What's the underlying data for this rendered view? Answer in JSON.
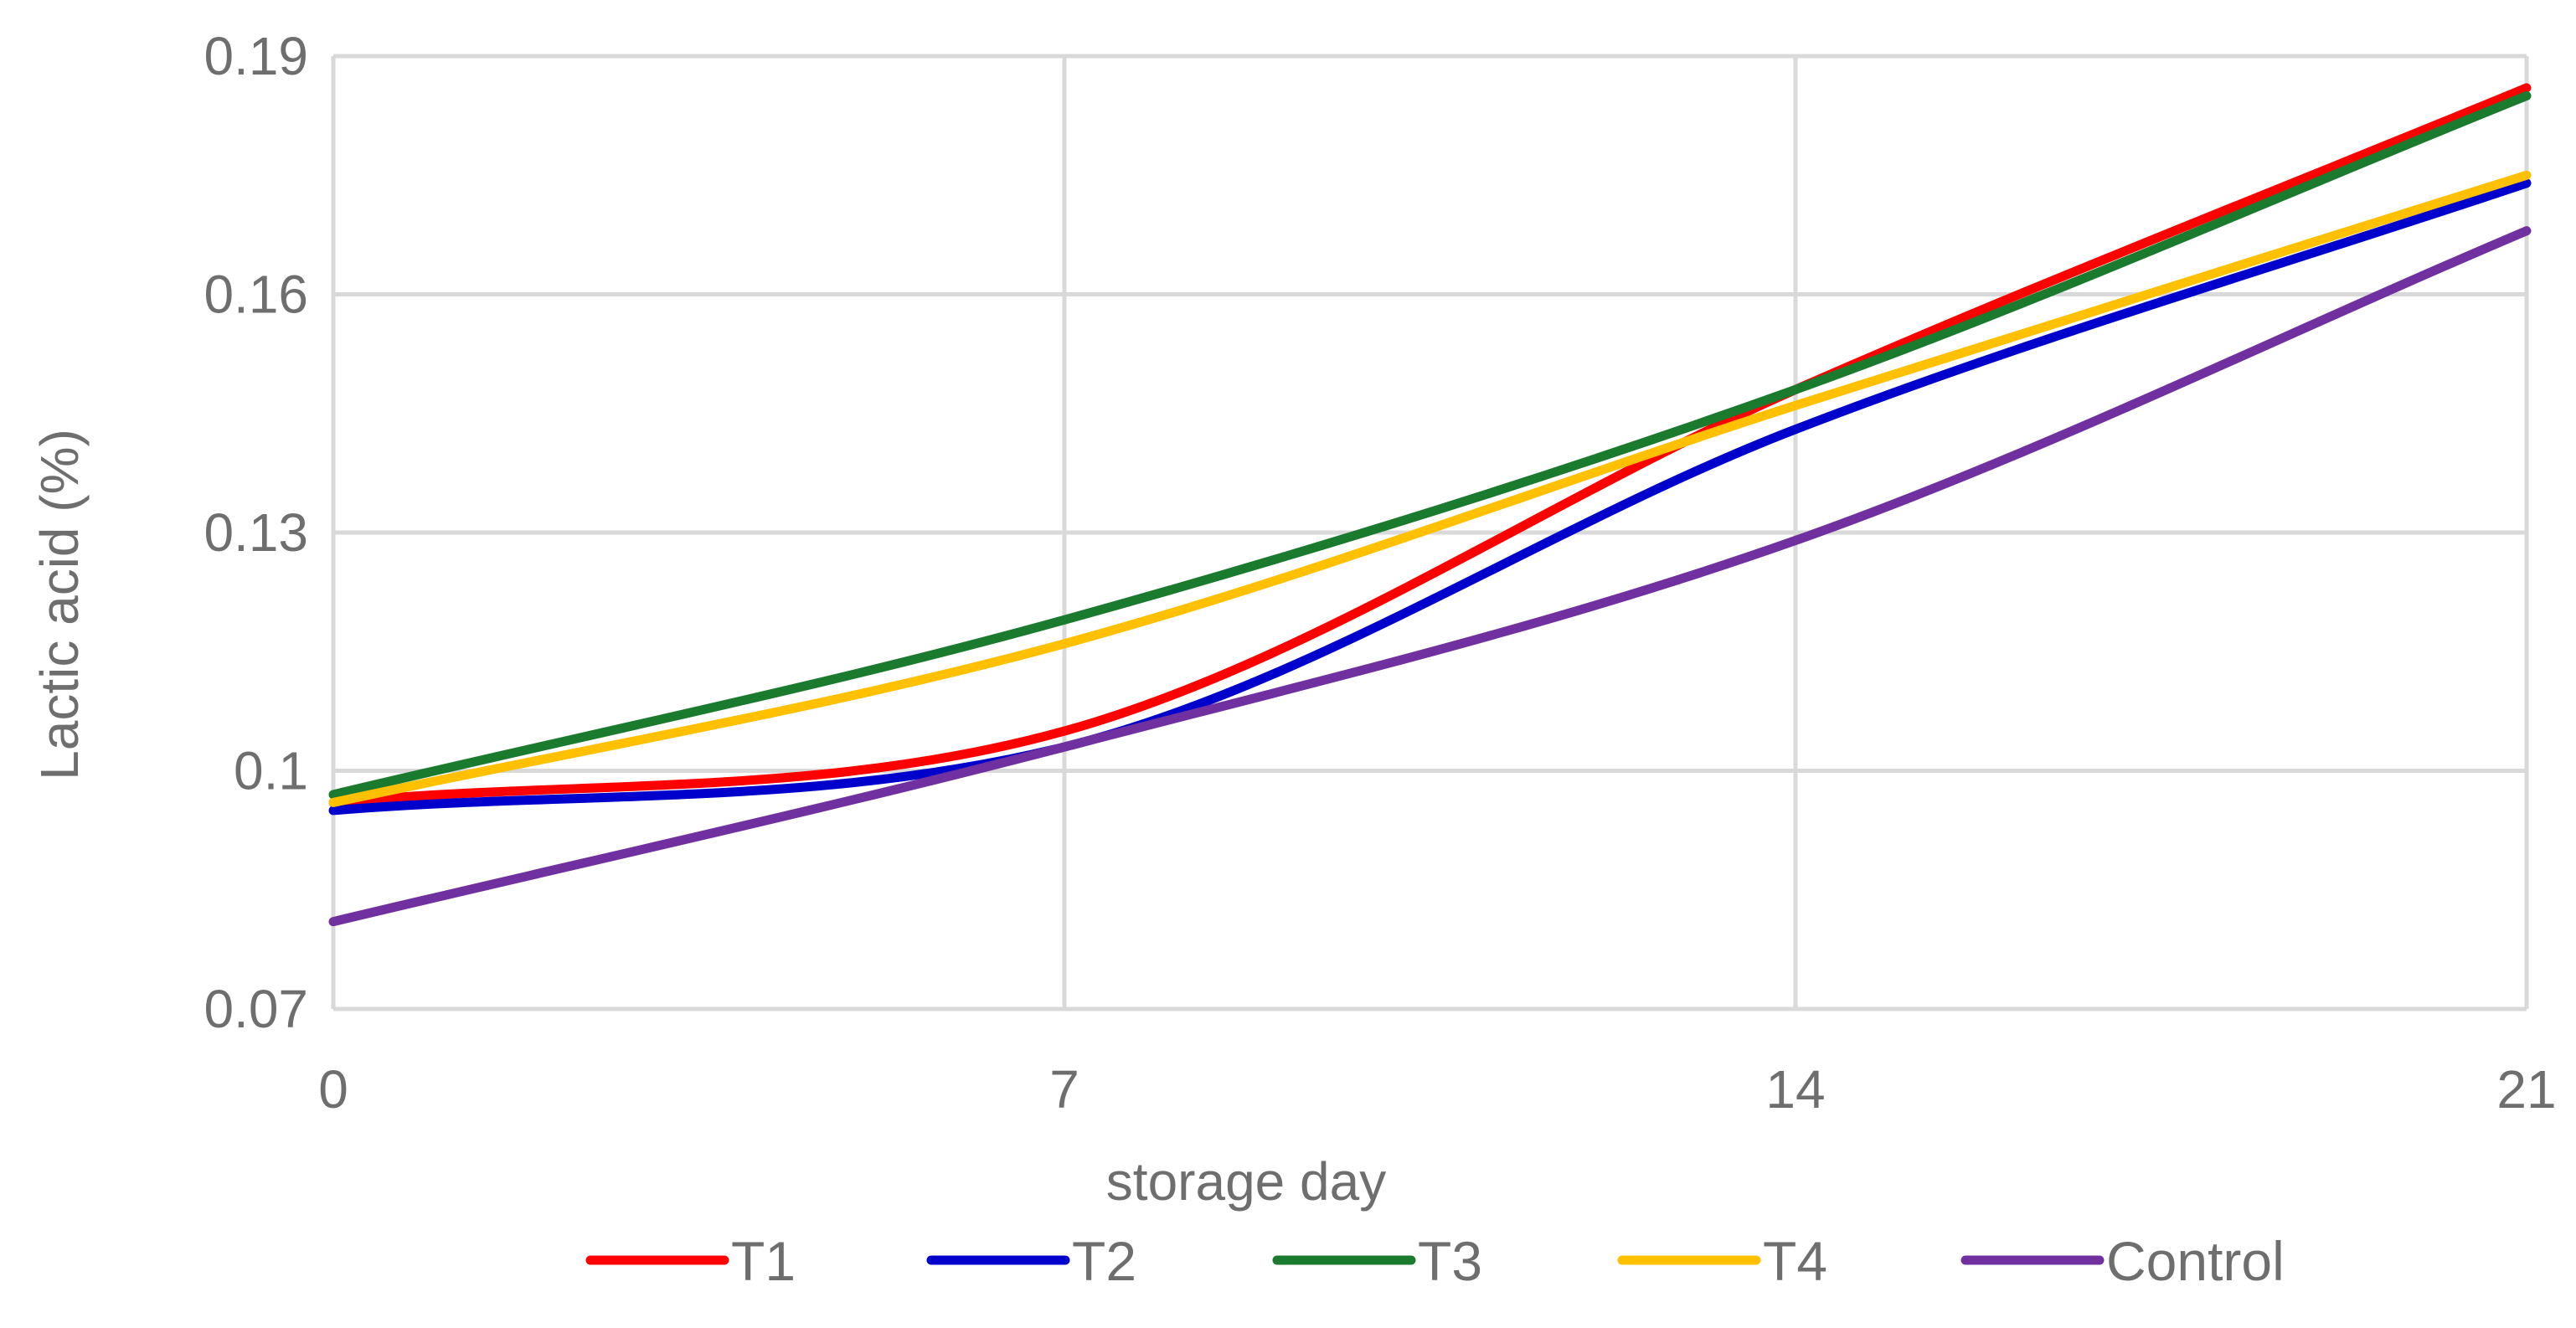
{
  "chart_data": {
    "type": "line",
    "title": "",
    "xlabel": "storage day",
    "ylabel": "Lactic acid  (%)",
    "x": [
      0,
      7,
      14,
      21
    ],
    "xlim": [
      0,
      21
    ],
    "ylim": [
      0.07,
      0.19
    ],
    "xticks": [
      0,
      7,
      14,
      21
    ],
    "xtick_labels": [
      "0",
      "7",
      "14",
      "21"
    ],
    "yticks": [
      0.07,
      0.1,
      0.13,
      0.16,
      0.19
    ],
    "ytick_labels": [
      "0.07",
      "0.1",
      "0.13",
      "0.16",
      "0.19"
    ],
    "grid": true,
    "legend_position": "bottom",
    "smooth": true,
    "series": [
      {
        "name": "T1",
        "color": "#ff0000",
        "values": [
          0.096,
          0.105,
          0.148,
          0.186
        ]
      },
      {
        "name": "T2",
        "color": "#0000cc",
        "values": [
          0.095,
          0.103,
          0.143,
          0.174
        ]
      },
      {
        "name": "T3",
        "color": "#1a7a2e",
        "values": [
          0.097,
          0.119,
          0.148,
          0.185
        ]
      },
      {
        "name": "T4",
        "color": "#ffc000",
        "values": [
          0.096,
          0.116,
          0.146,
          0.175
        ]
      },
      {
        "name": "Control",
        "color": "#7030a0",
        "values": [
          0.081,
          0.103,
          0.129,
          0.168
        ]
      }
    ]
  }
}
